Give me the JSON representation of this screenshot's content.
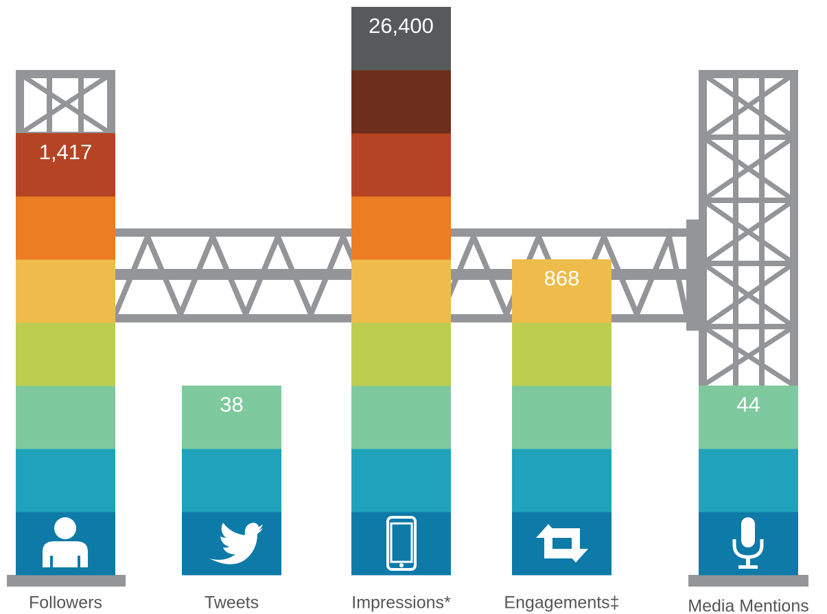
{
  "items": [
    {
      "label": "Followers",
      "value": "1,417"
    },
    {
      "label": "Tweets",
      "value": "38"
    },
    {
      "label": "Impressions*",
      "value": "26,400"
    },
    {
      "label": "Engagements‡",
      "value": "868"
    },
    {
      "label": "Media Mentions",
      "value": "44"
    }
  ]
}
